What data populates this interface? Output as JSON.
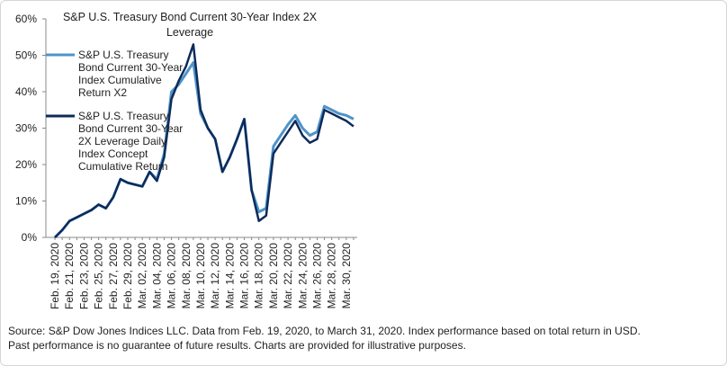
{
  "chart_data": {
    "type": "line",
    "title": "S&P U.S. Treasury Bond Current 30-Year Index 2X Leverage",
    "categories": [
      "Feb. 19, 2020",
      null,
      "Feb. 21, 2020",
      null,
      "Feb. 23, 2020",
      null,
      "Feb. 25, 2020",
      null,
      "Feb. 27, 2020",
      null,
      "Feb. 29, 2020",
      null,
      "Mar. 02, 2020",
      null,
      "Mar. 04, 2020",
      null,
      "Mar. 06, 2020",
      null,
      "Mar. 08, 2020",
      null,
      "Mar. 10, 2020",
      null,
      "Mar. 12, 2020",
      null,
      "Mar. 14, 2020",
      null,
      "Mar. 16, 2020",
      null,
      "Mar. 18, 2020",
      null,
      "Mar. 20, 2020",
      null,
      "Mar. 22, 2020",
      null,
      "Mar. 24, 2020",
      null,
      "Mar. 26, 2020",
      null,
      "Mar. 28, 2020",
      null,
      "Mar. 30, 2020",
      null
    ],
    "series": [
      {
        "name": "S&P U.S. Treasury Bond Current 30-Year Index Cumulative Return X2",
        "color": "#4f93c9",
        "values": [
          0,
          2,
          4.5,
          5.5,
          6.5,
          7.5,
          9,
          8,
          11,
          16,
          15,
          14.5,
          14,
          18,
          16,
          23,
          40,
          42,
          45,
          48,
          34,
          30,
          27,
          18,
          22,
          27,
          32.5,
          13,
          7,
          8,
          25,
          28,
          31,
          33.5,
          30,
          28,
          29,
          36,
          35,
          34,
          33.5,
          32.5
        ]
      },
      {
        "name": "S&P U.S. Treasury Bond Current 30-Year 2X Leverage Daily Index Concept Cumulative Return",
        "color": "#0d2b5a",
        "values": [
          0,
          2,
          4.5,
          5.5,
          6.5,
          7.5,
          9,
          8,
          11,
          16,
          15,
          14.5,
          14,
          18,
          15.5,
          22,
          38,
          43,
          47,
          53,
          35,
          30,
          27,
          18,
          22,
          27,
          32.5,
          13,
          4.5,
          6,
          23,
          26,
          29,
          32,
          28,
          26,
          27,
          35,
          34,
          33,
          32,
          30.5
        ]
      }
    ],
    "ylim": [
      0,
      60
    ],
    "yticks": [
      {
        "value": 0,
        "label": "0%"
      },
      {
        "value": 10,
        "label": "10%"
      },
      {
        "value": 20,
        "label": "20%"
      },
      {
        "value": 30,
        "label": "30%"
      },
      {
        "value": 40,
        "label": "40%"
      },
      {
        "value": 50,
        "label": "50%"
      },
      {
        "value": 60,
        "label": "60%"
      }
    ],
    "grid": false,
    "notes": [
      "Source: S&P Dow Jones Indices LLC. Data from Feb. 19, 2020, to March 31, 2020. Index performance based on total return in USD.",
      "Past performance is no guarantee of future results. Charts are provided for illustrative purposes."
    ]
  }
}
